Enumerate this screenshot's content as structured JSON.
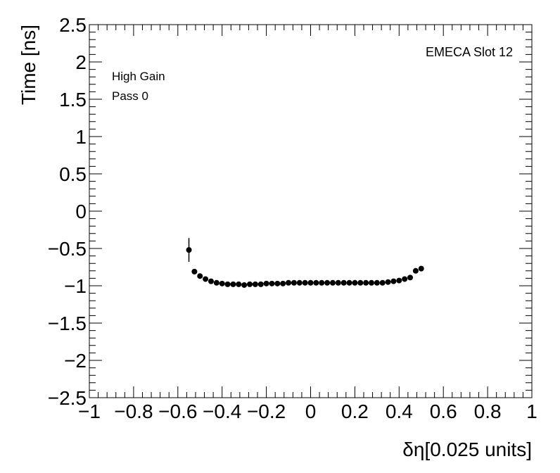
{
  "chart_data": {
    "type": "scatter",
    "x_label": "δη[0.025 units]",
    "y_label": "Time [ns]",
    "annotations": [
      "EMECA Slot 12",
      "High Gain",
      "Pass 0"
    ],
    "color": "#000000",
    "x": [
      -0.55,
      -0.525,
      -0.5,
      -0.475,
      -0.45,
      -0.425,
      -0.4,
      -0.375,
      -0.35,
      -0.325,
      -0.3,
      -0.275,
      -0.25,
      -0.225,
      -0.2,
      -0.175,
      -0.15,
      -0.125,
      -0.1,
      -0.075,
      -0.05,
      -0.025,
      0,
      0.025,
      0.05,
      0.075,
      0.1,
      0.125,
      0.15,
      0.175,
      0.2,
      0.225,
      0.25,
      0.275,
      0.3,
      0.325,
      0.35,
      0.375,
      0.4,
      0.425,
      0.45,
      0.475,
      0.5
    ],
    "values": [
      -0.52,
      -0.81,
      -0.87,
      -0.91,
      -0.94,
      -0.96,
      -0.97,
      -0.98,
      -0.98,
      -0.98,
      -0.99,
      -0.98,
      -0.98,
      -0.98,
      -0.97,
      -0.97,
      -0.97,
      -0.97,
      -0.96,
      -0.96,
      -0.96,
      -0.96,
      -0.96,
      -0.96,
      -0.96,
      -0.96,
      -0.96,
      -0.96,
      -0.96,
      -0.96,
      -0.96,
      -0.96,
      -0.96,
      -0.96,
      -0.96,
      -0.96,
      -0.95,
      -0.94,
      -0.93,
      -0.91,
      -0.89,
      -0.8,
      -0.77
    ],
    "errors": [
      0.16,
      0.02,
      0.01,
      0.01,
      0.01,
      0.01,
      0.01,
      0.01,
      0.01,
      0.01,
      0.01,
      0.01,
      0.01,
      0.01,
      0.01,
      0.01,
      0.01,
      0.01,
      0.01,
      0.01,
      0.01,
      0.01,
      0.01,
      0.01,
      0.01,
      0.01,
      0.01,
      0.01,
      0.01,
      0.01,
      0.01,
      0.01,
      0.01,
      0.01,
      0.01,
      0.01,
      0.01,
      0.01,
      0.01,
      0.01,
      0.01,
      0.02,
      0.02
    ],
    "xlim": [
      -1,
      1
    ],
    "xticks": [
      {
        "value": -1,
        "label": "−1"
      },
      {
        "value": -0.8,
        "label": "−0.8"
      },
      {
        "value": -0.6,
        "label": "−0.6"
      },
      {
        "value": -0.4,
        "label": "−0.4"
      },
      {
        "value": -0.2,
        "label": "−0.2"
      },
      0,
      0.2,
      0.4,
      0.6,
      0.8,
      1
    ],
    "ylim": [
      -2.5,
      2.5
    ],
    "yticks": [
      {
        "value": -2.5,
        "label": "−2.5"
      },
      {
        "value": -2,
        "label": "−2"
      },
      {
        "value": -1.5,
        "label": "−1.5"
      },
      {
        "value": -1,
        "label": "−1"
      },
      {
        "value": -0.5,
        "label": "−0.5"
      },
      0,
      0.5,
      1,
      1.5,
      2,
      2.5
    ]
  }
}
